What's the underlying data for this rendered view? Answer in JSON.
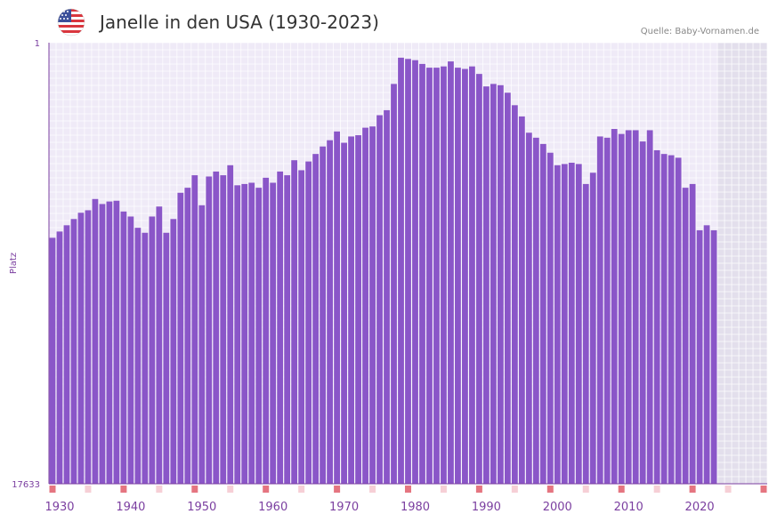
{
  "header": {
    "title": "Janelle in den USA (1930-2023)",
    "source": "Quelle: Baby-Vornamen.de",
    "flag_icon": "us-flag-icon"
  },
  "colors": {
    "bar": "#8a56c8",
    "plot_bg": "#efeaf7",
    "grid": "#ffffff",
    "future_bg": "#e3dfec",
    "axis_line": "#7b3fa0",
    "tick_text": "#7b3fa0",
    "decade_mark": "#e57580",
    "minor_mark": "#f6cfd6"
  },
  "chart_data": {
    "type": "bar",
    "title": "Janelle in den USA (1930-2023)",
    "ylabel": "Platz",
    "xlabel": "",
    "y_axis_reversed": true,
    "ylim": [
      1,
      17633
    ],
    "y_tick_labels": [
      "1",
      "17633"
    ],
    "x_tick_labels": [
      "1930",
      "1940",
      "1950",
      "1960",
      "1970",
      "1980",
      "1990",
      "2000",
      "2010",
      "2020"
    ],
    "x_range": [
      1929,
      2029
    ],
    "future_start_year": 2022,
    "decade_marker_years": [
      1929,
      1939,
      1949,
      1959,
      1969,
      1979,
      1989,
      1999,
      2009,
      2019,
      2029
    ],
    "minor_marker_years": [
      1934,
      1944,
      1954,
      1964,
      1974,
      1984,
      1994,
      2004,
      2014,
      2024
    ],
    "x": [
      1929,
      1930,
      1931,
      1932,
      1933,
      1934,
      1935,
      1936,
      1937,
      1938,
      1939,
      1940,
      1941,
      1942,
      1943,
      1944,
      1945,
      1946,
      1947,
      1948,
      1949,
      1950,
      1951,
      1952,
      1953,
      1954,
      1955,
      1956,
      1957,
      1958,
      1959,
      1960,
      1961,
      1962,
      1963,
      1964,
      1965,
      1966,
      1967,
      1968,
      1969,
      1970,
      1971,
      1972,
      1973,
      1974,
      1975,
      1976,
      1977,
      1978,
      1979,
      1980,
      1981,
      1982,
      1983,
      1984,
      1985,
      1986,
      1987,
      1988,
      1989,
      1990,
      1991,
      1992,
      1993,
      1994,
      1995,
      1996,
      1997,
      1998,
      1999,
      2000,
      2001,
      2002,
      2003,
      2004,
      2005,
      2006,
      2007,
      2008,
      2009,
      2010,
      2011,
      2012,
      2013,
      2014,
      2015,
      2016,
      2017,
      2018,
      2019,
      2020,
      2021,
      2022
    ],
    "values": [
      7800,
      7550,
      7300,
      7050,
      6800,
      6700,
      6250,
      6450,
      6350,
      6320,
      6750,
      6950,
      7400,
      7600,
      6950,
      6550,
      7600,
      7050,
      6000,
      5800,
      5300,
      6500,
      5350,
      5150,
      5300,
      4900,
      5700,
      5650,
      5600,
      5800,
      5400,
      5600,
      5150,
      5300,
      4700,
      5100,
      4750,
      4450,
      4150,
      3900,
      3550,
      4000,
      3750,
      3700,
      3400,
      3350,
      2900,
      2700,
      1650,
      600,
      650,
      700,
      850,
      1000,
      1000,
      950,
      750,
      1000,
      1050,
      950,
      1250,
      1750,
      1650,
      1700,
      2000,
      2500,
      2950,
      3600,
      3800,
      4050,
      4400,
      4900,
      4850,
      4800,
      4850,
      5650,
      5200,
      3750,
      3800,
      3450,
      3650,
      3500,
      3500,
      3950,
      3500,
      4300,
      4450,
      4500,
      4600,
      5800,
      5650,
      7500,
      7300,
      7500
    ]
  }
}
